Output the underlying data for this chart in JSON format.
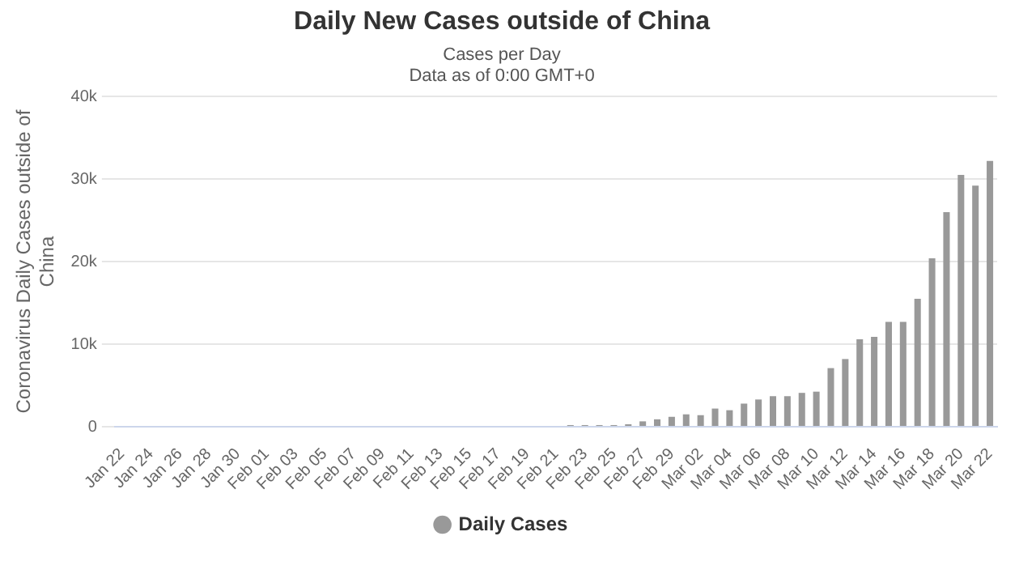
{
  "chart_data": {
    "type": "bar",
    "title": "Daily New Cases outside of China",
    "subtitle": "Cases per Day\nData as of 0:00 GMT+0",
    "ylabel": "Coronavirus Daily Cases outside of China",
    "categories": [
      "Jan 22",
      null,
      "Jan 24",
      null,
      "Jan 26",
      null,
      "Jan 28",
      null,
      "Jan 30",
      null,
      "Feb 01",
      null,
      "Feb 03",
      null,
      "Feb 05",
      null,
      "Feb 07",
      null,
      "Feb 09",
      null,
      "Feb 11",
      null,
      "Feb 13",
      null,
      "Feb 15",
      null,
      "Feb 17",
      null,
      "Feb 19",
      null,
      "Feb 21",
      null,
      "Feb 23",
      null,
      "Feb 25",
      null,
      "Feb 27",
      null,
      "Feb 29",
      null,
      "Mar 02",
      null,
      "Mar 04",
      null,
      "Mar 06",
      null,
      "Mar 08",
      null,
      "Mar 10",
      null,
      "Mar 12",
      null,
      "Mar 14",
      null,
      "Mar 16",
      null,
      "Mar 18",
      null,
      "Mar 20",
      null,
      "Mar 22"
    ],
    "series": [
      {
        "name": "Daily Cases",
        "color": "#999999",
        "values": [
          0,
          0,
          0,
          0,
          0,
          0,
          0,
          0,
          0,
          0,
          0,
          0,
          0,
          0,
          0,
          0,
          0,
          0,
          0,
          0,
          0,
          0,
          0,
          0,
          0,
          0,
          0,
          0,
          0,
          0,
          0,
          200,
          200,
          200,
          200,
          300,
          650,
          900,
          1200,
          1500,
          1400,
          2200,
          2000,
          2800,
          3300,
          3700,
          3700,
          4100,
          4250,
          7100,
          8200,
          10600,
          10900,
          12700,
          12700,
          15500,
          20400,
          26000,
          30500,
          29200,
          32200
        ]
      }
    ],
    "ylim": [
      0,
      40000
    ],
    "yticks": [
      0,
      {
        "value": 10000,
        "label": "10k"
      },
      {
        "value": 20000,
        "label": "20k"
      },
      {
        "value": 30000,
        "label": "30k"
      },
      {
        "value": 40000,
        "label": "40k"
      }
    ],
    "grid": "y",
    "legend": "bottom"
  }
}
